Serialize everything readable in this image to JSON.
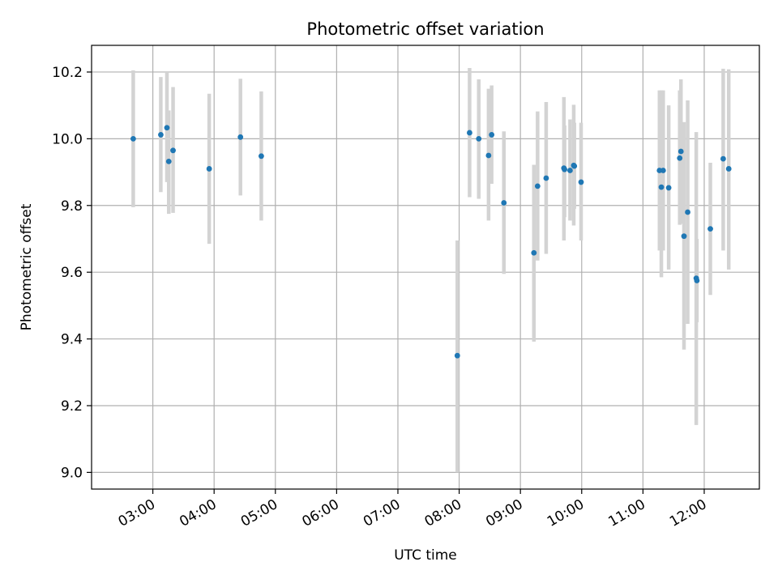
{
  "chart_data": {
    "type": "scatter",
    "title": "Photometric offset variation",
    "xlabel": "UTC time",
    "ylabel": "Photometric offset",
    "x_unit": "hours UTC",
    "xlim": [
      2.0,
      12.9
    ],
    "ylim": [
      8.95,
      10.28
    ],
    "x_ticks": [
      3,
      4,
      5,
      6,
      7,
      8,
      9,
      10,
      11,
      12
    ],
    "x_tick_labels": [
      "03:00",
      "04:00",
      "05:00",
      "06:00",
      "07:00",
      "08:00",
      "09:00",
      "10:00",
      "11:00",
      "12:00"
    ],
    "y_ticks": [
      9.0,
      9.2,
      9.4,
      9.6,
      9.8,
      10.0,
      10.2
    ],
    "y_tick_labels": [
      "9.0",
      "9.2",
      "9.4",
      "9.6",
      "9.8",
      "10.0",
      "10.2"
    ],
    "grid": true,
    "legend": "none",
    "colors": {
      "points": "#1f77b4",
      "errorbars": "#d3d3d3",
      "grid": "#b0b0b0"
    },
    "points": [
      {
        "x": 2.68,
        "y": 10.0,
        "lo": 9.795,
        "hi": 10.205
      },
      {
        "x": 3.13,
        "y": 10.012,
        "lo": 9.84,
        "hi": 10.185
      },
      {
        "x": 3.23,
        "y": 10.033,
        "lo": 9.87,
        "hi": 10.2
      },
      {
        "x": 3.26,
        "y": 9.932,
        "lo": 9.775,
        "hi": 10.085
      },
      {
        "x": 3.33,
        "y": 9.965,
        "lo": 9.778,
        "hi": 10.155
      },
      {
        "x": 3.92,
        "y": 9.91,
        "lo": 9.685,
        "hi": 10.135
      },
      {
        "x": 4.43,
        "y": 10.005,
        "lo": 9.83,
        "hi": 10.18
      },
      {
        "x": 4.77,
        "y": 9.948,
        "lo": 9.755,
        "hi": 10.142
      },
      {
        "x": 7.97,
        "y": 9.35,
        "lo": 9.0,
        "hi": 9.695
      },
      {
        "x": 8.17,
        "y": 10.018,
        "lo": 9.825,
        "hi": 10.212
      },
      {
        "x": 8.32,
        "y": 10.0,
        "lo": 9.82,
        "hi": 10.178
      },
      {
        "x": 8.48,
        "y": 9.95,
        "lo": 9.755,
        "hi": 10.15
      },
      {
        "x": 8.53,
        "y": 10.012,
        "lo": 9.865,
        "hi": 10.16
      },
      {
        "x": 8.73,
        "y": 9.808,
        "lo": 9.595,
        "hi": 10.022
      },
      {
        "x": 9.22,
        "y": 9.658,
        "lo": 9.392,
        "hi": 9.922
      },
      {
        "x": 9.28,
        "y": 9.858,
        "lo": 9.635,
        "hi": 10.082
      },
      {
        "x": 9.42,
        "y": 9.882,
        "lo": 9.655,
        "hi": 10.11
      },
      {
        "x": 9.71,
        "y": 9.912,
        "lo": 9.695,
        "hi": 10.125
      },
      {
        "x": 9.72,
        "y": 9.908,
        "lo": 9.765,
        "hi": 10.04
      },
      {
        "x": 9.81,
        "y": 9.905,
        "lo": 9.755,
        "hi": 10.058
      },
      {
        "x": 9.87,
        "y": 9.92,
        "lo": 9.74,
        "hi": 10.102
      },
      {
        "x": 9.88,
        "y": 9.918,
        "lo": 9.79,
        "hi": 10.048
      },
      {
        "x": 9.99,
        "y": 9.87,
        "lo": 9.695,
        "hi": 10.048
      },
      {
        "x": 11.27,
        "y": 9.905,
        "lo": 9.665,
        "hi": 10.145
      },
      {
        "x": 11.3,
        "y": 9.855,
        "lo": 9.585,
        "hi": 10.145
      },
      {
        "x": 11.33,
        "y": 9.905,
        "lo": 9.665,
        "hi": 10.145
      },
      {
        "x": 11.42,
        "y": 9.853,
        "lo": 9.608,
        "hi": 10.1
      },
      {
        "x": 11.6,
        "y": 9.942,
        "lo": 9.742,
        "hi": 10.145
      },
      {
        "x": 11.62,
        "y": 9.962,
        "lo": 9.745,
        "hi": 10.178
      },
      {
        "x": 11.67,
        "y": 9.708,
        "lo": 9.368,
        "hi": 10.05
      },
      {
        "x": 11.73,
        "y": 9.78,
        "lo": 9.445,
        "hi": 10.115
      },
      {
        "x": 11.87,
        "y": 9.582,
        "lo": 9.142,
        "hi": 10.02
      },
      {
        "x": 11.88,
        "y": 9.575,
        "lo": 9.45,
        "hi": 9.7
      },
      {
        "x": 12.1,
        "y": 9.73,
        "lo": 9.532,
        "hi": 9.928
      },
      {
        "x": 12.31,
        "y": 9.94,
        "lo": 9.665,
        "hi": 10.21
      },
      {
        "x": 12.4,
        "y": 9.91,
        "lo": 9.608,
        "hi": 10.208
      }
    ]
  }
}
